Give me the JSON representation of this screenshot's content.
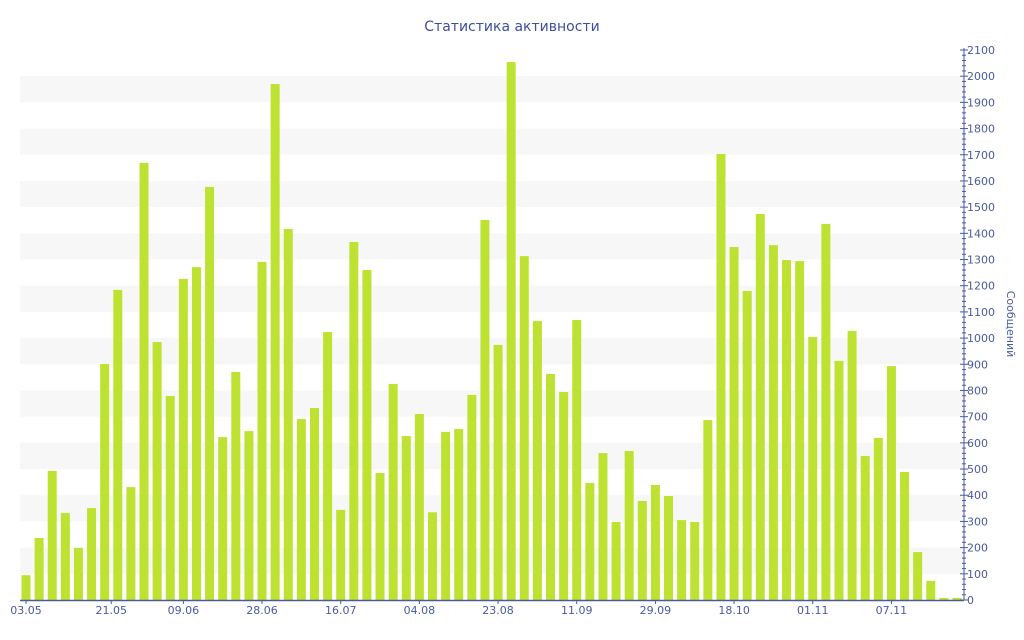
{
  "chart_data": {
    "type": "bar",
    "title": "Статистика активности",
    "ylabel": "Сообщений",
    "xlabel": "",
    "ylim": [
      0,
      2100
    ],
    "y_ticks": [
      0,
      100,
      200,
      300,
      400,
      500,
      600,
      700,
      800,
      900,
      1000,
      1100,
      1200,
      1300,
      1400,
      1500,
      1600,
      1700,
      1800,
      1900,
      2000,
      2100
    ],
    "y_axis_side": "right",
    "grid": "alternating horizontal bands",
    "x_tick_labels": [
      {
        "label": "03.05",
        "at_bar": 0
      },
      {
        "label": "21.05",
        "at_bar": 6.5
      },
      {
        "label": "09.06",
        "at_bar": 12
      },
      {
        "label": "28.06",
        "at_bar": 18
      },
      {
        "label": "16.07",
        "at_bar": 24
      },
      {
        "label": "04.08",
        "at_bar": 30
      },
      {
        "label": "23.08",
        "at_bar": 36
      },
      {
        "label": "11.09",
        "at_bar": 42
      },
      {
        "label": "29.09",
        "at_bar": 48
      },
      {
        "label": "18.10",
        "at_bar": 54
      },
      {
        "label": "01.11",
        "at_bar": 60
      },
      {
        "label": "07.11",
        "at_bar": 66
      }
    ],
    "values": [
      95,
      237,
      493,
      332,
      199,
      351,
      901,
      1184,
      431,
      1669,
      985,
      779,
      1226,
      1271,
      1577,
      622,
      871,
      645,
      1291,
      1970,
      1417,
      691,
      733,
      1023,
      344,
      1367,
      1260,
      485,
      825,
      626,
      710,
      335,
      642,
      653,
      783,
      1451,
      974,
      2054,
      1313,
      1065,
      863,
      794,
      1069,
      447,
      561,
      298,
      569,
      378,
      439,
      397,
      305,
      298,
      687,
      1703,
      1348,
      1180,
      1474,
      1355,
      1298,
      1294,
      1004,
      1436,
      913,
      1027,
      550,
      619,
      893,
      489,
      183,
      73,
      8,
      8
    ],
    "colors": {
      "bar": "#bde232",
      "axis": "#4a5aa0",
      "title": "#3f4f9b",
      "band": "#f7f7f7"
    }
  }
}
